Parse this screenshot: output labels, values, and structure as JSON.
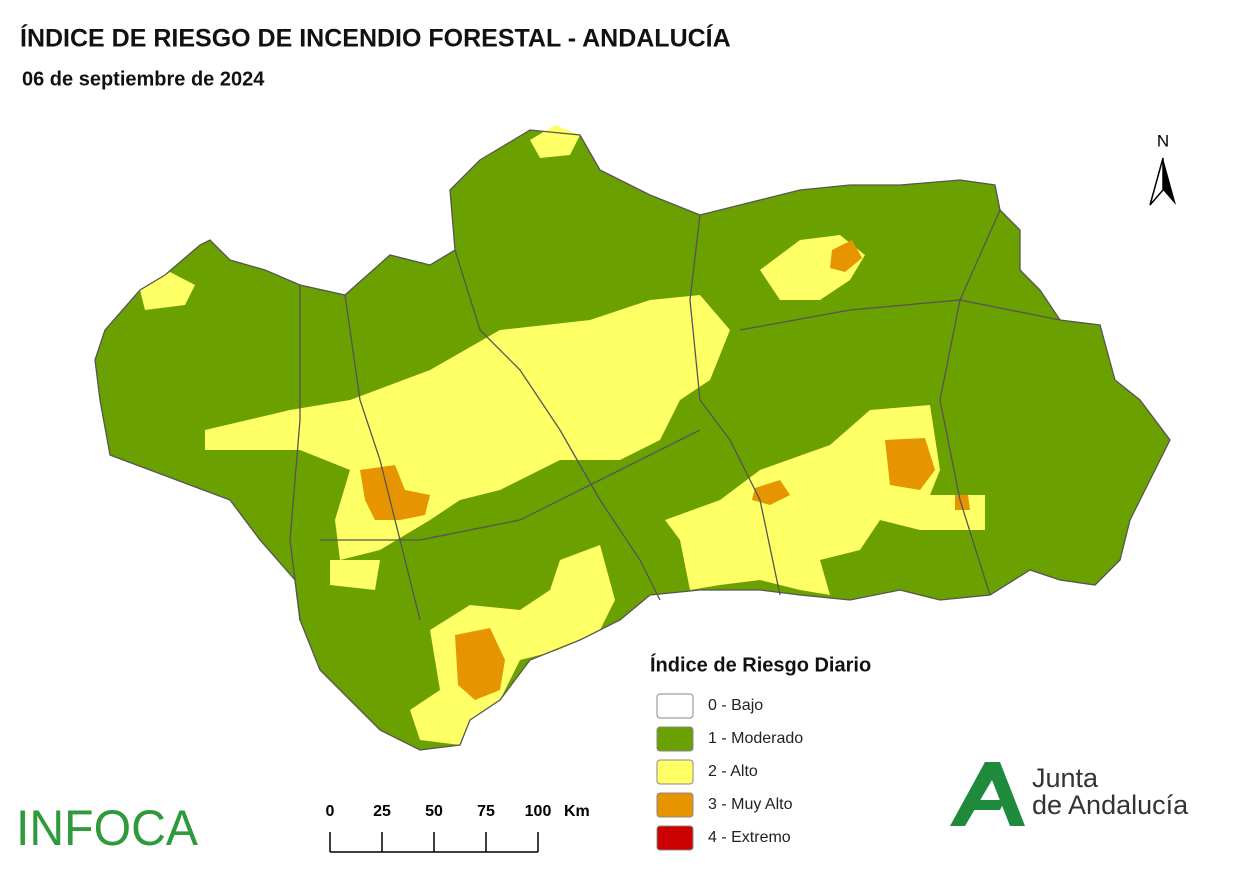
{
  "header": {
    "title": "ÍNDICE DE RIESGO DE INCENDIO FORESTAL - ANDALUCÍA",
    "subtitle": "06 de septiembre de 2024"
  },
  "north_arrow": {
    "label": "N"
  },
  "legend": {
    "title": "Índice de Riesgo Diario",
    "items": [
      {
        "label": "0 - Bajo",
        "color": "#ffffff"
      },
      {
        "label": "1 - Moderado",
        "color": "#6aa000"
      },
      {
        "label": "2 - Alto",
        "color": "#ffff66"
      },
      {
        "label": "3 - Muy Alto",
        "color": "#e69500"
      },
      {
        "label": "4 - Extremo",
        "color": "#cc0000"
      }
    ]
  },
  "scale_bar": {
    "ticks": [
      0,
      25,
      50,
      75,
      100
    ],
    "unit": "Km"
  },
  "logos": {
    "infoca": "INFOCA",
    "junta_line1": "Junta",
    "junta_line2": "de Andalucía"
  }
}
